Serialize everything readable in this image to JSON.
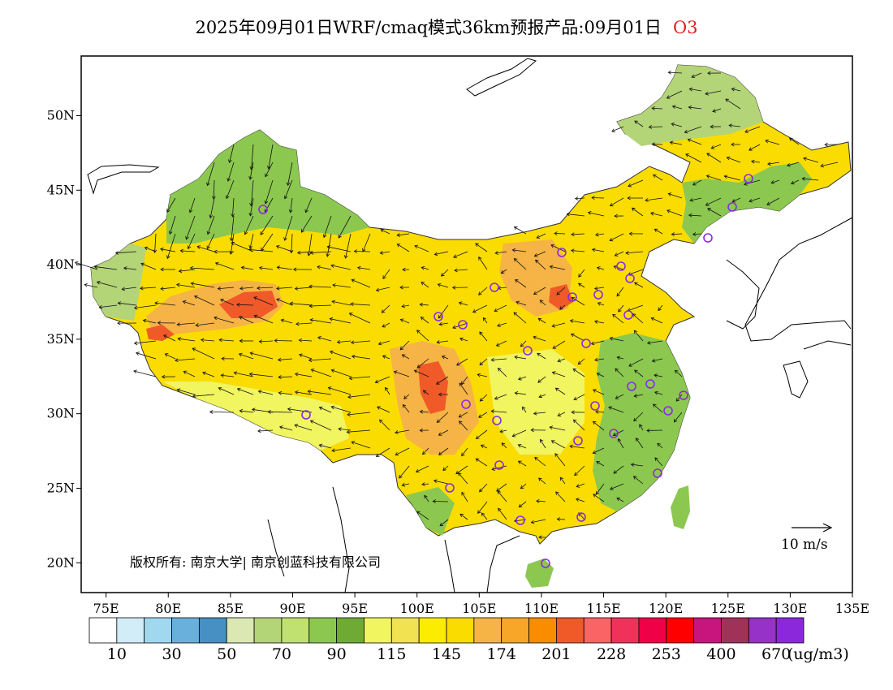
{
  "title": {
    "main": "2025年09月01日WRF/cmaq模式36km预报产品:09月01日",
    "species": "O3",
    "species_color": "#e02020"
  },
  "map": {
    "lon_range": [
      73,
      135
    ],
    "lat_range": [
      18,
      54
    ],
    "lon_ticks": [
      "75E",
      "80E",
      "85E",
      "90E",
      "95E",
      "100E",
      "105E",
      "110E",
      "115E",
      "120E",
      "125E",
      "130E",
      "135E"
    ],
    "lat_ticks": [
      "20N",
      "25N",
      "30N",
      "35N",
      "40N",
      "45N",
      "50N"
    ],
    "copyright": "版权所有: 南京大学| 南京创蓝科技有限公司",
    "wind_reference": "10 m/s",
    "city_marker_color": "#8a2be2"
  },
  "colorbar": {
    "colors": [
      "#ffffff",
      "#d2ecf8",
      "#a0d8f0",
      "#6ab0dc",
      "#4690c4",
      "#dce8b4",
      "#b4d478",
      "#c0e070",
      "#8cc850",
      "#6eaa34",
      "#f0f560",
      "#f0e250",
      "#fcec00",
      "#fadc00",
      "#f6b446",
      "#f8a628",
      "#fa8c00",
      "#f05a28",
      "#fa6464",
      "#f0325a",
      "#f00046",
      "#ff0000",
      "#c8147d",
      "#a0325a",
      "#9632c8",
      "#8c28dc"
    ],
    "labels": [
      "10",
      "30",
      "50",
      "70",
      "90",
      "115",
      "145",
      "174",
      "201",
      "228",
      "253",
      "400",
      "670"
    ],
    "unit": "(ug/m3)"
  }
}
